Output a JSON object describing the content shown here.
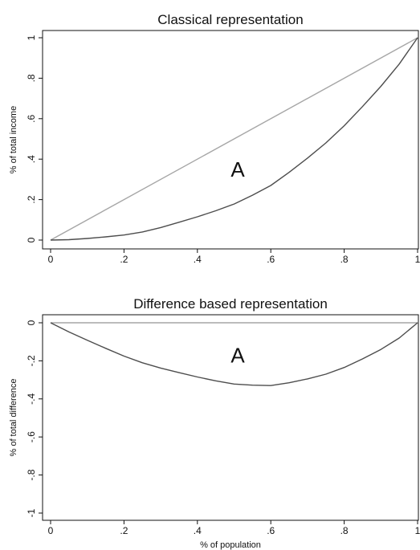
{
  "chart_data": [
    {
      "type": "line",
      "title": "Classical representation",
      "xlabel": "",
      "ylabel": "% of total income",
      "xlim": [
        0,
        1
      ],
      "ylim": [
        0,
        1
      ],
      "xticks": [
        0,
        0.2,
        0.4,
        0.6,
        0.8,
        1
      ],
      "xtick_labels": [
        "0",
        ".2",
        ".4",
        ".6",
        ".8",
        "1"
      ],
      "yticks": [
        0,
        0.2,
        0.4,
        0.6,
        0.8,
        1
      ],
      "ytick_labels": [
        "0",
        ".2",
        ".4",
        ".6",
        ".8",
        "1"
      ],
      "grid": false,
      "annotation": {
        "text": "A",
        "x": 0.51,
        "y": 0.35
      },
      "series": [
        {
          "x": [
            0,
            1
          ],
          "y": [
            0,
            1
          ],
          "color": "#a6a6a6"
        },
        {
          "x": [
            0,
            0.05,
            0.1,
            0.15,
            0.2,
            0.25,
            0.3,
            0.35,
            0.4,
            0.45,
            0.5,
            0.55,
            0.6,
            0.65,
            0.7,
            0.75,
            0.8,
            0.85,
            0.9,
            0.95,
            1
          ],
          "y": [
            0,
            0.002,
            0.008,
            0.016,
            0.025,
            0.04,
            0.062,
            0.088,
            0.115,
            0.145,
            0.178,
            0.222,
            0.27,
            0.335,
            0.405,
            0.48,
            0.565,
            0.66,
            0.76,
            0.87,
            1
          ],
          "color": "#4d4d4d"
        }
      ]
    },
    {
      "type": "line",
      "title": "Difference based representation",
      "xlabel": "% of population",
      "ylabel": "% of total difference",
      "xlim": [
        0,
        1
      ],
      "ylim": [
        -1,
        0
      ],
      "xticks": [
        0,
        0.2,
        0.4,
        0.6,
        0.8,
        1
      ],
      "xtick_labels": [
        "0",
        ".2",
        ".4",
        ".6",
        ".8",
        "1"
      ],
      "yticks": [
        0,
        -0.2,
        -0.4,
        -0.6,
        -0.8,
        -1
      ],
      "ytick_labels": [
        "0",
        "-.2",
        "-.4",
        "-.6",
        "-.8",
        "-1"
      ],
      "grid": false,
      "annotation": {
        "text": "A",
        "x": 0.51,
        "y": -0.17
      },
      "series": [
        {
          "x": [
            0,
            1
          ],
          "y": [
            0,
            0
          ],
          "color": "#a6a6a6"
        },
        {
          "x": [
            0,
            0.05,
            0.1,
            0.15,
            0.2,
            0.25,
            0.3,
            0.35,
            0.4,
            0.45,
            0.5,
            0.55,
            0.6,
            0.65,
            0.7,
            0.75,
            0.8,
            0.85,
            0.9,
            0.95,
            1
          ],
          "y": [
            0,
            -0.048,
            -0.092,
            -0.134,
            -0.175,
            -0.21,
            -0.238,
            -0.262,
            -0.285,
            -0.305,
            -0.322,
            -0.328,
            -0.33,
            -0.315,
            -0.295,
            -0.27,
            -0.235,
            -0.19,
            -0.14,
            -0.08,
            0
          ],
          "color": "#4d4d4d"
        }
      ]
    }
  ]
}
